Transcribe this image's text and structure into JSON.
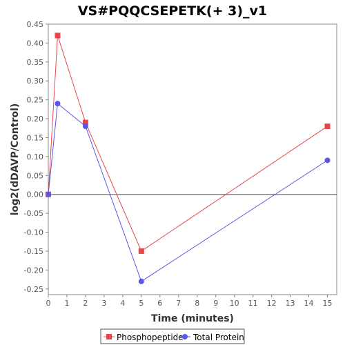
{
  "chart_data": {
    "type": "line",
    "title": "VS#PQQCSEPETK(+ 3)_v1",
    "xlabel": "Time (minutes)",
    "ylabel": "log2(dDAVP/Control)",
    "xlim": [
      0,
      15.5
    ],
    "ylim": [
      -0.265,
      0.45
    ],
    "xticks": [
      0,
      1,
      2,
      3,
      4,
      5,
      6,
      7,
      8,
      9,
      10,
      11,
      12,
      13,
      14,
      15
    ],
    "yticks": [
      -0.25,
      -0.2,
      -0.15,
      -0.1,
      -0.05,
      0.0,
      0.05,
      0.1,
      0.15,
      0.2,
      0.25,
      0.3,
      0.35,
      0.4,
      0.45
    ],
    "ytick_labels": [
      "-0.25",
      "-0.20",
      "-0.15",
      "-0.10",
      "-0.05",
      "0.00",
      "0.05",
      "0.10",
      "0.15",
      "0.20",
      "0.25",
      "0.30",
      "0.35",
      "0.40",
      "0.45"
    ],
    "legend_position": "bottom",
    "grid": false,
    "series": [
      {
        "name": "Phosphopeptide",
        "color": "#e8474a",
        "marker": "square",
        "x": [
          0,
          0.5,
          2,
          5,
          15
        ],
        "y": [
          0.0,
          0.42,
          0.19,
          -0.15,
          0.18
        ]
      },
      {
        "name": "Total Protein",
        "color": "#5b55e8",
        "marker": "circle",
        "x": [
          0,
          0.5,
          2,
          5,
          15
        ],
        "y": [
          0.0,
          0.24,
          0.18,
          -0.23,
          0.09
        ]
      }
    ]
  }
}
